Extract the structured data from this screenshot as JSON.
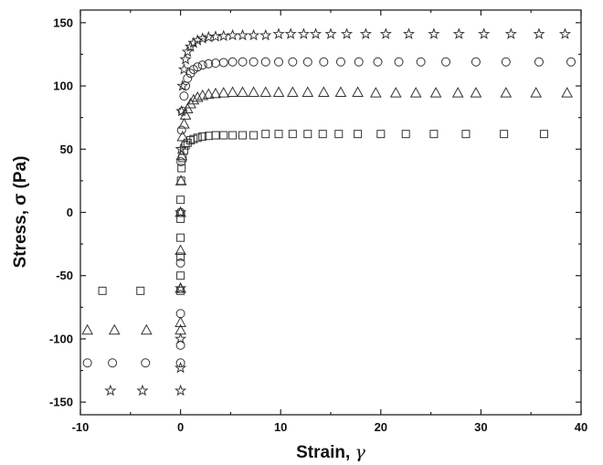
{
  "chart_data": {
    "type": "scatter",
    "title": "",
    "xlabel_text": "Strain, ",
    "xlabel_symbol": "γ",
    "ylabel": "Stress, σ (Pa)",
    "xlim": [
      -10,
      40
    ],
    "ylim": [
      -160,
      160
    ],
    "xticks": [
      -10,
      0,
      10,
      20,
      30,
      40
    ],
    "yticks": [
      -150,
      -100,
      -50,
      0,
      50,
      100,
      150
    ],
    "xtick_labels": [
      "-10",
      "0",
      "10",
      "20",
      "30",
      "40"
    ],
    "ytick_labels": [
      "-150",
      "-100",
      "-50",
      "0",
      "50",
      "100",
      "150"
    ],
    "grid": false,
    "series": [
      {
        "marker": "square",
        "points": [
          [
            -7.8,
            -62
          ],
          [
            -4.0,
            -62
          ],
          [
            0.0,
            -62
          ],
          [
            0.0,
            -50
          ],
          [
            0.0,
            -35
          ],
          [
            0.0,
            -20
          ],
          [
            0.0,
            -5
          ],
          [
            0.0,
            10
          ],
          [
            0.05,
            25
          ],
          [
            0.1,
            35
          ],
          [
            0.2,
            43
          ],
          [
            0.35,
            49
          ],
          [
            0.5,
            53
          ],
          [
            0.7,
            55
          ],
          [
            1.0,
            57
          ],
          [
            1.3,
            58
          ],
          [
            1.7,
            59
          ],
          [
            2.2,
            60
          ],
          [
            2.8,
            60.5
          ],
          [
            3.5,
            61
          ],
          [
            4.3,
            61
          ],
          [
            5.2,
            61
          ],
          [
            6.2,
            61
          ],
          [
            7.3,
            61
          ],
          [
            8.5,
            62
          ],
          [
            9.8,
            62
          ],
          [
            11.2,
            62
          ],
          [
            12.7,
            62
          ],
          [
            14.2,
            62
          ],
          [
            15.8,
            62
          ],
          [
            17.7,
            62
          ],
          [
            20.0,
            62
          ],
          [
            22.5,
            62
          ],
          [
            25.3,
            62
          ],
          [
            28.5,
            62
          ],
          [
            32.3,
            62
          ],
          [
            36.3,
            62
          ]
        ]
      },
      {
        "marker": "triangle",
        "points": [
          [
            -9.3,
            -93
          ],
          [
            -6.6,
            -93
          ],
          [
            -3.4,
            -93
          ],
          [
            0.0,
            -93
          ],
          [
            0.0,
            -87
          ],
          [
            0.0,
            -60
          ],
          [
            0.0,
            -30
          ],
          [
            0.0,
            0
          ],
          [
            0.05,
            25
          ],
          [
            0.1,
            45
          ],
          [
            0.2,
            60
          ],
          [
            0.35,
            70
          ],
          [
            0.5,
            77
          ],
          [
            0.7,
            82
          ],
          [
            1.0,
            86
          ],
          [
            1.3,
            89
          ],
          [
            1.7,
            91
          ],
          [
            2.2,
            92.5
          ],
          [
            2.8,
            93.5
          ],
          [
            3.5,
            94
          ],
          [
            4.3,
            94.5
          ],
          [
            5.2,
            95
          ],
          [
            6.2,
            95
          ],
          [
            7.3,
            95
          ],
          [
            8.5,
            95
          ],
          [
            9.8,
            95
          ],
          [
            11.2,
            95
          ],
          [
            12.7,
            95
          ],
          [
            14.3,
            95
          ],
          [
            16.0,
            95
          ],
          [
            17.7,
            95
          ],
          [
            19.5,
            94.5
          ],
          [
            21.5,
            94.5
          ],
          [
            23.5,
            94.5
          ],
          [
            25.5,
            94.5
          ],
          [
            27.7,
            94.5
          ],
          [
            29.5,
            94.5
          ],
          [
            32.5,
            94.5
          ],
          [
            35.5,
            94.5
          ],
          [
            38.6,
            94.5
          ]
        ]
      },
      {
        "marker": "circle",
        "points": [
          [
            -9.3,
            -119
          ],
          [
            -6.8,
            -119
          ],
          [
            -3.5,
            -119
          ],
          [
            0.0,
            -119
          ],
          [
            0.0,
            -105
          ],
          [
            0.0,
            -80
          ],
          [
            0.0,
            -40
          ],
          [
            0.0,
            0
          ],
          [
            0.05,
            40
          ],
          [
            0.1,
            65
          ],
          [
            0.2,
            80
          ],
          [
            0.35,
            92
          ],
          [
            0.5,
            100
          ],
          [
            0.7,
            106
          ],
          [
            1.0,
            110
          ],
          [
            1.3,
            113
          ],
          [
            1.7,
            115
          ],
          [
            2.2,
            116.5
          ],
          [
            2.8,
            117.5
          ],
          [
            3.5,
            118
          ],
          [
            4.3,
            118.5
          ],
          [
            5.2,
            119
          ],
          [
            6.2,
            119
          ],
          [
            7.3,
            119
          ],
          [
            8.5,
            119
          ],
          [
            9.8,
            119
          ],
          [
            11.2,
            119
          ],
          [
            12.7,
            119
          ],
          [
            14.3,
            119
          ],
          [
            16.0,
            119
          ],
          [
            17.8,
            119
          ],
          [
            19.7,
            119
          ],
          [
            21.8,
            119
          ],
          [
            24.0,
            119
          ],
          [
            26.5,
            119
          ],
          [
            29.5,
            119
          ],
          [
            32.5,
            119
          ],
          [
            35.8,
            119
          ],
          [
            39.0,
            119
          ]
        ]
      },
      {
        "marker": "star",
        "points": [
          [
            -7.0,
            -141
          ],
          [
            -3.8,
            -141
          ],
          [
            0.0,
            -141
          ],
          [
            0.0,
            -123
          ],
          [
            0.0,
            -100
          ],
          [
            0.0,
            -60
          ],
          [
            0.0,
            0
          ],
          [
            0.05,
            50
          ],
          [
            0.1,
            80
          ],
          [
            0.2,
            100
          ],
          [
            0.35,
            113
          ],
          [
            0.5,
            121
          ],
          [
            0.7,
            127
          ],
          [
            1.0,
            131
          ],
          [
            1.3,
            134
          ],
          [
            1.7,
            136
          ],
          [
            2.2,
            137.5
          ],
          [
            2.8,
            138.5
          ],
          [
            3.5,
            139
          ],
          [
            4.3,
            139.5
          ],
          [
            5.2,
            140
          ],
          [
            6.2,
            140
          ],
          [
            7.3,
            140
          ],
          [
            8.5,
            140
          ],
          [
            9.8,
            141
          ],
          [
            11.0,
            141
          ],
          [
            12.3,
            141
          ],
          [
            13.5,
            141
          ],
          [
            15.0,
            141
          ],
          [
            16.6,
            141
          ],
          [
            18.5,
            141
          ],
          [
            20.5,
            141
          ],
          [
            22.8,
            141
          ],
          [
            25.3,
            141
          ],
          [
            27.8,
            141
          ],
          [
            30.3,
            141
          ],
          [
            33.0,
            141
          ],
          [
            35.8,
            141
          ],
          [
            38.4,
            141
          ]
        ]
      }
    ]
  }
}
